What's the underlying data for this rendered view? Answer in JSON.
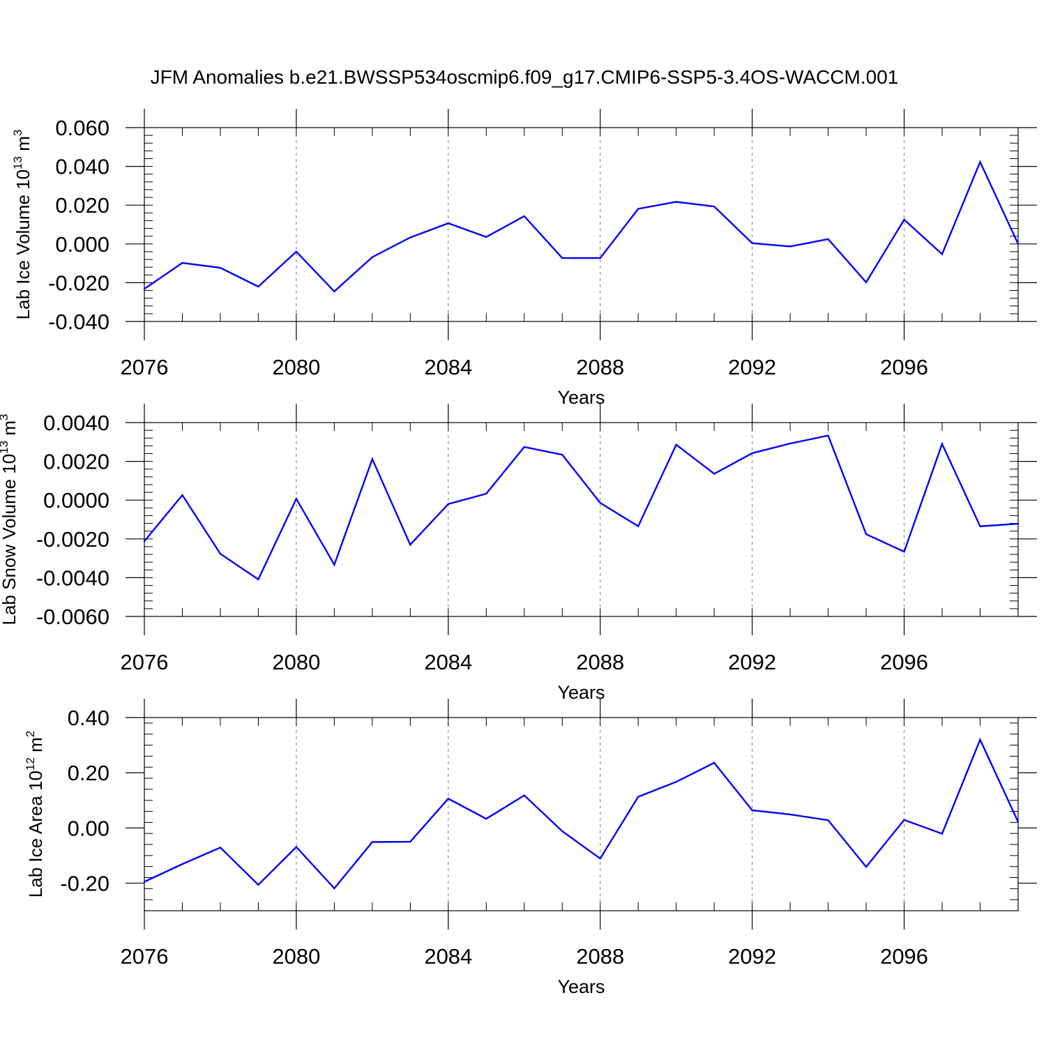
{
  "chart_data": {
    "title": "JFM Anomalies b.e21.BWSSP534oscmip6.f09_g17.CMIP6-SSP5-3.4OS-WACCM.001",
    "panels": [
      {
        "type": "line",
        "name": "lab-ice-volume",
        "ylabel": {
          "prefix": "Lab Ice Volume 10",
          "exp": "13",
          "unit": " m",
          "unit_exp": "3"
        },
        "xlabel": "Years",
        "x": [
          2076,
          2077,
          2078,
          2079,
          2080,
          2081,
          2082,
          2083,
          2084,
          2085,
          2086,
          2087,
          2088,
          2089,
          2090,
          2091,
          2092,
          2093,
          2094,
          2095,
          2096,
          2097,
          2098,
          2099
        ],
        "values": [
          -0.0232,
          -0.0098,
          -0.0123,
          -0.022,
          -0.004,
          -0.0245,
          -0.0068,
          0.0033,
          0.0107,
          0.0036,
          0.0143,
          -0.0073,
          -0.0073,
          0.0181,
          0.0217,
          0.0193,
          0.0004,
          -0.0013,
          0.0025,
          -0.0198,
          0.0125,
          -0.0053,
          0.0423,
          0.0
        ],
        "xlim": [
          2076,
          2099
        ],
        "ylim": [
          -0.04,
          0.06
        ],
        "yticks": [
          -0.04,
          -0.02,
          0.0,
          0.02,
          0.04,
          0.06
        ],
        "ytick_labels": [
          "-0.040",
          "-0.020",
          "0.000",
          "0.020",
          "0.040",
          "0.060"
        ],
        "xticks": [
          2076,
          2080,
          2084,
          2088,
          2092,
          2096
        ],
        "xtick_labels": [
          "2076",
          "2080",
          "2084",
          "2088",
          "2092",
          "2096"
        ]
      },
      {
        "type": "line",
        "name": "lab-snow-volume",
        "ylabel": {
          "prefix": "Lab Snow Volume 10",
          "exp": "13",
          "unit": " m",
          "unit_exp": "3"
        },
        "xlabel": "Years",
        "x": [
          2076,
          2077,
          2078,
          2079,
          2080,
          2081,
          2082,
          2083,
          2084,
          2085,
          2086,
          2087,
          2088,
          2089,
          2090,
          2091,
          2092,
          2093,
          2094,
          2095,
          2096,
          2097,
          2098,
          2099
        ],
        "values": [
          -0.00212,
          0.00026,
          -0.00277,
          -0.00409,
          7e-05,
          -0.00333,
          0.00212,
          -0.0023,
          -0.0002,
          0.00033,
          0.00274,
          0.00234,
          -0.00014,
          -0.00135,
          0.00286,
          0.00136,
          0.00242,
          0.00292,
          0.00333,
          -0.00176,
          -0.00266,
          0.0029,
          -0.00135,
          -0.00122
        ],
        "xlim": [
          2076,
          2099
        ],
        "ylim": [
          -0.006,
          0.004
        ],
        "yticks": [
          -0.006,
          -0.004,
          -0.002,
          0.0,
          0.002,
          0.004
        ],
        "ytick_labels": [
          "-0.0060",
          "-0.0040",
          "-0.0020",
          "0.0000",
          "0.0020",
          "0.0040"
        ],
        "xticks": [
          2076,
          2080,
          2084,
          2088,
          2092,
          2096
        ],
        "xtick_labels": [
          "2076",
          "2080",
          "2084",
          "2088",
          "2092",
          "2096"
        ]
      },
      {
        "type": "line",
        "name": "lab-ice-area",
        "ylabel": {
          "prefix": "Lab Ice Area 10",
          "exp": "12",
          "unit": " m",
          "unit_exp": "2"
        },
        "xlabel": "Years",
        "x": [
          2076,
          2077,
          2078,
          2079,
          2080,
          2081,
          2082,
          2083,
          2084,
          2085,
          2086,
          2087,
          2088,
          2089,
          2090,
          2091,
          2092,
          2093,
          2094,
          2095,
          2096,
          2097,
          2098,
          2099
        ],
        "values": [
          -0.195,
          -0.131,
          -0.071,
          -0.206,
          -0.069,
          -0.219,
          -0.051,
          -0.05,
          0.106,
          0.033,
          0.118,
          -0.012,
          -0.111,
          0.113,
          0.167,
          0.236,
          0.064,
          0.049,
          0.028,
          -0.141,
          0.029,
          -0.021,
          0.32,
          0.022
        ],
        "xlim": [
          2076,
          2099
        ],
        "ylim": [
          -0.3,
          0.4
        ],
        "yticks": [
          -0.2,
          0.0,
          0.2,
          0.4
        ],
        "ytick_labels": [
          "-0.20",
          "0.00",
          "0.20",
          "0.40"
        ],
        "xticks": [
          2076,
          2080,
          2084,
          2088,
          2092,
          2096
        ],
        "xtick_labels": [
          "2076",
          "2080",
          "2084",
          "2088",
          "2092",
          "2096"
        ]
      }
    ],
    "line_color": "#0000ff",
    "grid": "dashed vertical at major x ticks"
  }
}
